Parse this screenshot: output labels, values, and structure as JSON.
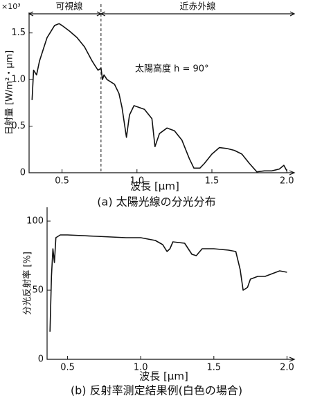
{
  "chart_data": [
    {
      "type": "line",
      "title": "(a) 太陽光線の分光分布",
      "x_label": "波長 [μm]",
      "y_label": "日射量 [W/m²・μm]",
      "y_unit": "×10³",
      "annotations": [
        "可視線",
        "近赤外線",
        "太陽高度 h = 90°"
      ],
      "vline": 0.76,
      "color": "#111111",
      "x": [
        0.3,
        0.31,
        0.33,
        0.35,
        0.38,
        0.4,
        0.45,
        0.48,
        0.5,
        0.55,
        0.6,
        0.65,
        0.7,
        0.72,
        0.74,
        0.76,
        0.77,
        0.78,
        0.8,
        0.85,
        0.88,
        0.9,
        0.93,
        0.95,
        0.98,
        1.05,
        1.1,
        1.12,
        1.15,
        1.2,
        1.25,
        1.3,
        1.35,
        1.38,
        1.42,
        1.45,
        1.5,
        1.55,
        1.6,
        1.65,
        1.7,
        1.75,
        1.8,
        1.85,
        1.9,
        1.95,
        1.98,
        2.0
      ],
      "values": [
        0.78,
        1.1,
        1.05,
        1.2,
        1.35,
        1.45,
        1.58,
        1.6,
        1.58,
        1.52,
        1.45,
        1.35,
        1.2,
        1.15,
        1.1,
        1.12,
        1.0,
        1.05,
        1.0,
        0.95,
        0.85,
        0.7,
        0.38,
        0.62,
        0.72,
        0.68,
        0.58,
        0.28,
        0.42,
        0.48,
        0.45,
        0.35,
        0.15,
        0.05,
        0.05,
        0.1,
        0.2,
        0.27,
        0.26,
        0.24,
        0.2,
        0.1,
        0.01,
        0.02,
        0.02,
        0.04,
        0.08,
        0.02
      ],
      "xlim": [
        0.28,
        2.05
      ],
      "ylim": [
        0,
        1.72
      ],
      "xticks": [
        {
          "value": 0.5,
          "label": "0.5"
        },
        {
          "value": 1,
          "label": "1.0"
        },
        {
          "value": 1.5,
          "label": "1.5"
        },
        {
          "value": 2,
          "label": "2.0"
        }
      ],
      "yticks": [
        0,
        {
          "value": 0.5,
          "label": "0.5"
        },
        {
          "value": 1,
          "label": "1.0"
        },
        {
          "value": 1.5,
          "label": "1.5"
        }
      ]
    },
    {
      "type": "line",
      "title": "(b) 反射率測定結果例(白色の場合)",
      "x_label": "波長 [μm]",
      "y_label": "分光反射率 [%]",
      "color": "#111111",
      "x": [
        0.38,
        0.39,
        0.4,
        0.41,
        0.42,
        0.45,
        0.5,
        0.7,
        0.9,
        1.0,
        1.1,
        1.15,
        1.18,
        1.2,
        1.22,
        1.3,
        1.35,
        1.38,
        1.42,
        1.5,
        1.6,
        1.65,
        1.68,
        1.7,
        1.73,
        1.75,
        1.8,
        1.85,
        1.9,
        1.95,
        2.0
      ],
      "values": [
        20,
        60,
        80,
        70,
        88,
        90,
        90,
        89,
        88,
        88,
        86,
        83,
        78,
        80,
        85,
        84,
        76,
        75,
        80,
        80,
        79,
        78,
        65,
        50,
        52,
        58,
        60,
        60,
        62,
        64,
        63
      ],
      "xlim": [
        0.36,
        2.05
      ],
      "ylim": [
        0,
        110
      ],
      "xticks": [
        {
          "value": 0.5,
          "label": "0.5"
        },
        {
          "value": 1,
          "label": "1.0"
        },
        {
          "value": 1.5,
          "label": "1.5"
        },
        {
          "value": 2,
          "label": "2.0"
        }
      ],
      "yticks": [
        0,
        50,
        100
      ]
    }
  ]
}
